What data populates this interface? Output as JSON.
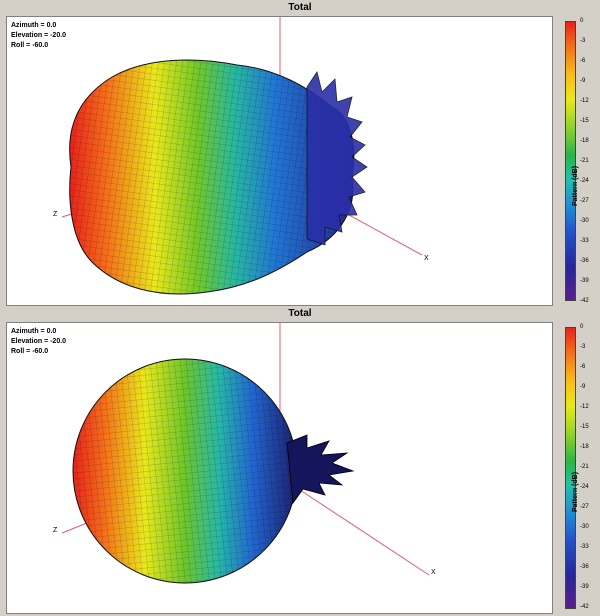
{
  "panels": [
    {
      "title": "Total",
      "view": {
        "azimuth": "Azimuth = 0.0",
        "elevation": "Elevation = -20.0",
        "roll": "Roll = -60.0"
      },
      "axes": {
        "x": "X",
        "z": "Z"
      }
    },
    {
      "title": "Total",
      "view": {
        "azimuth": "Azimuth = 0.0",
        "elevation": "Elevation = -20.0",
        "roll": "Roll = -60.0"
      },
      "axes": {
        "x": "X",
        "z": "Z"
      }
    }
  ],
  "colorbar": {
    "label": "Pattern (dB)",
    "ticks": [
      "0",
      "-3",
      "-6",
      "-9",
      "-12",
      "-15",
      "-18",
      "-21",
      "-24",
      "-27",
      "-30",
      "-33",
      "-36",
      "-39",
      "-42"
    ],
    "colors": {
      "top": "#e8221c",
      "mid": "#2ab34a",
      "bottom": "#5a1e8e"
    }
  }
}
